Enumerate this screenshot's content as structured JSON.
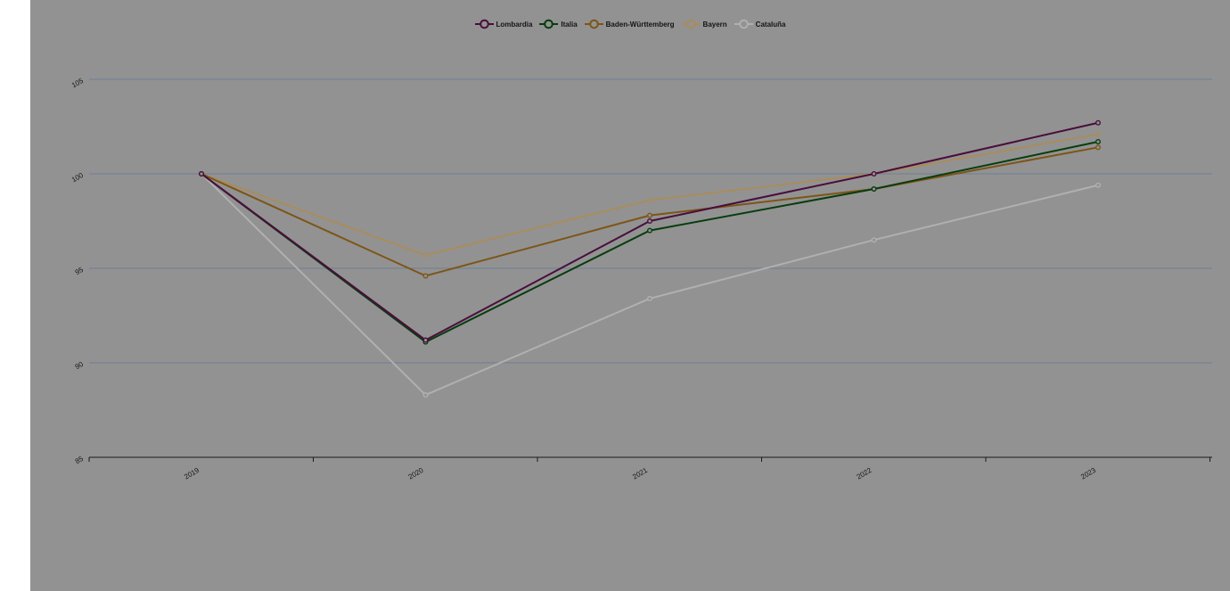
{
  "chart_data": {
    "type": "line",
    "title": "",
    "xlabel": "",
    "ylabel": "",
    "categories": [
      "2019",
      "2020",
      "2021",
      "2022",
      "2023"
    ],
    "ylim": [
      85,
      105
    ],
    "yticks": [
      85,
      90,
      95,
      100,
      105
    ],
    "grid": true,
    "legend_position": "top-center",
    "series": [
      {
        "name": "Lombardia",
        "color": "#4a0e3c",
        "values": [
          100,
          91.2,
          97.5,
          100.0,
          102.7
        ]
      },
      {
        "name": "Italia",
        "color": "#073d0e",
        "values": [
          100,
          91.1,
          97.0,
          99.2,
          101.7
        ]
      },
      {
        "name": "Baden-Württemberg",
        "color": "#7d5516",
        "values": [
          100,
          94.6,
          97.8,
          99.2,
          101.4
        ]
      },
      {
        "name": "Bayern",
        "color": "#a98c5c",
        "values": [
          100,
          95.7,
          98.6,
          100.0,
          102.1
        ]
      },
      {
        "name": "Cataluña",
        "color": "#b0b0b0",
        "values": [
          100,
          88.3,
          93.4,
          96.5,
          99.4
        ]
      }
    ]
  }
}
